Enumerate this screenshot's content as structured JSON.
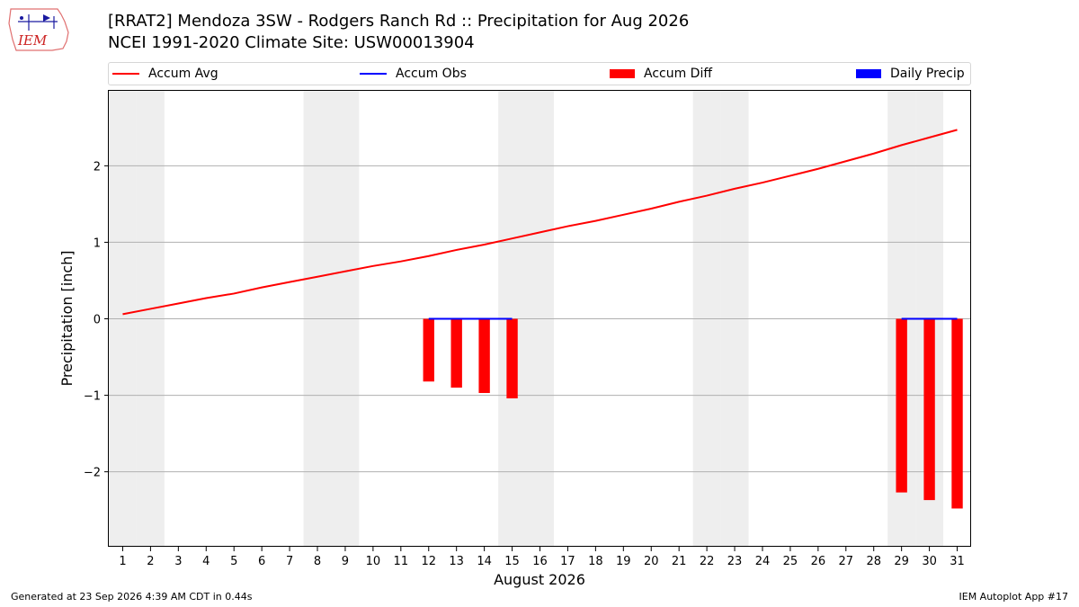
{
  "header": {
    "logo_text": "IEM",
    "title_line1": "[RRAT2] Mendoza 3SW - Rodgers Ranch Rd :: Precipitation for Aug 2026",
    "title_line2": "NCEI 1991-2020 Climate Site: USW00013904"
  },
  "legend": {
    "accum_avg": "Accum Avg",
    "accum_obs": "Accum Obs",
    "accum_diff": "Accum Diff",
    "daily_precip": "Daily Precip"
  },
  "colors": {
    "avg": "#ff0000",
    "obs": "#0000ff",
    "diff": "#ff0000",
    "daily": "#0000ff",
    "weekend": "#eeeeee",
    "grid": "#b0b0b0"
  },
  "footer": {
    "generated": "Generated at 23 Sep 2026 4:39 AM CDT in 0.44s",
    "app": "IEM Autoplot App #17"
  },
  "chart_data": {
    "type": "bar",
    "xlabel": "August 2026",
    "ylabel": "Precipitation [inch]",
    "x": [
      1,
      2,
      3,
      4,
      5,
      6,
      7,
      8,
      9,
      10,
      11,
      12,
      13,
      14,
      15,
      16,
      17,
      18,
      19,
      20,
      21,
      22,
      23,
      24,
      25,
      26,
      27,
      28,
      29,
      30,
      31
    ],
    "xlim": [
      0.5,
      31.5
    ],
    "ylim": [
      -2.98,
      2.98
    ],
    "yticks": [
      -2,
      -1,
      0,
      1,
      2
    ],
    "ytick_labels": [
      "−2",
      "−1",
      "0",
      "1",
      "2"
    ],
    "grid": "horizontal",
    "legend_position": "top",
    "weekend_days": [
      1,
      2,
      8,
      9,
      15,
      16,
      22,
      23,
      29,
      30
    ],
    "series": [
      {
        "name": "Accum Avg",
        "type": "line",
        "x": [
          1,
          2,
          3,
          4,
          5,
          6,
          7,
          8,
          9,
          10,
          11,
          12,
          13,
          14,
          15,
          16,
          17,
          18,
          19,
          20,
          21,
          22,
          23,
          24,
          25,
          26,
          27,
          28,
          29,
          30,
          31
        ],
        "values": [
          0.06,
          0.13,
          0.2,
          0.27,
          0.33,
          0.41,
          0.48,
          0.55,
          0.62,
          0.69,
          0.75,
          0.82,
          0.9,
          0.97,
          1.05,
          1.13,
          1.21,
          1.28,
          1.36,
          1.44,
          1.53,
          1.61,
          1.7,
          1.78,
          1.87,
          1.96,
          2.06,
          2.16,
          2.27,
          2.37,
          2.47
        ]
      },
      {
        "name": "Accum Obs",
        "type": "line",
        "segments": [
          {
            "x": [
              12,
              13,
              14,
              15
            ],
            "values": [
              0.0,
              0.0,
              0.0,
              0.0
            ]
          },
          {
            "x": [
              29,
              30,
              31
            ],
            "values": [
              0.0,
              0.0,
              0.0
            ]
          }
        ]
      },
      {
        "name": "Accum Diff",
        "type": "bar",
        "x": [
          12,
          13,
          14,
          15,
          29,
          30,
          31
        ],
        "values": [
          -0.82,
          -0.9,
          -0.97,
          -1.04,
          -2.27,
          -2.37,
          -2.48
        ]
      },
      {
        "name": "Daily Precip",
        "type": "bar",
        "x": [
          12,
          13,
          14,
          15,
          29,
          30,
          31
        ],
        "values": [
          0.0,
          0.0,
          0.0,
          0.0,
          0.0,
          0.0,
          0.0
        ]
      }
    ]
  }
}
